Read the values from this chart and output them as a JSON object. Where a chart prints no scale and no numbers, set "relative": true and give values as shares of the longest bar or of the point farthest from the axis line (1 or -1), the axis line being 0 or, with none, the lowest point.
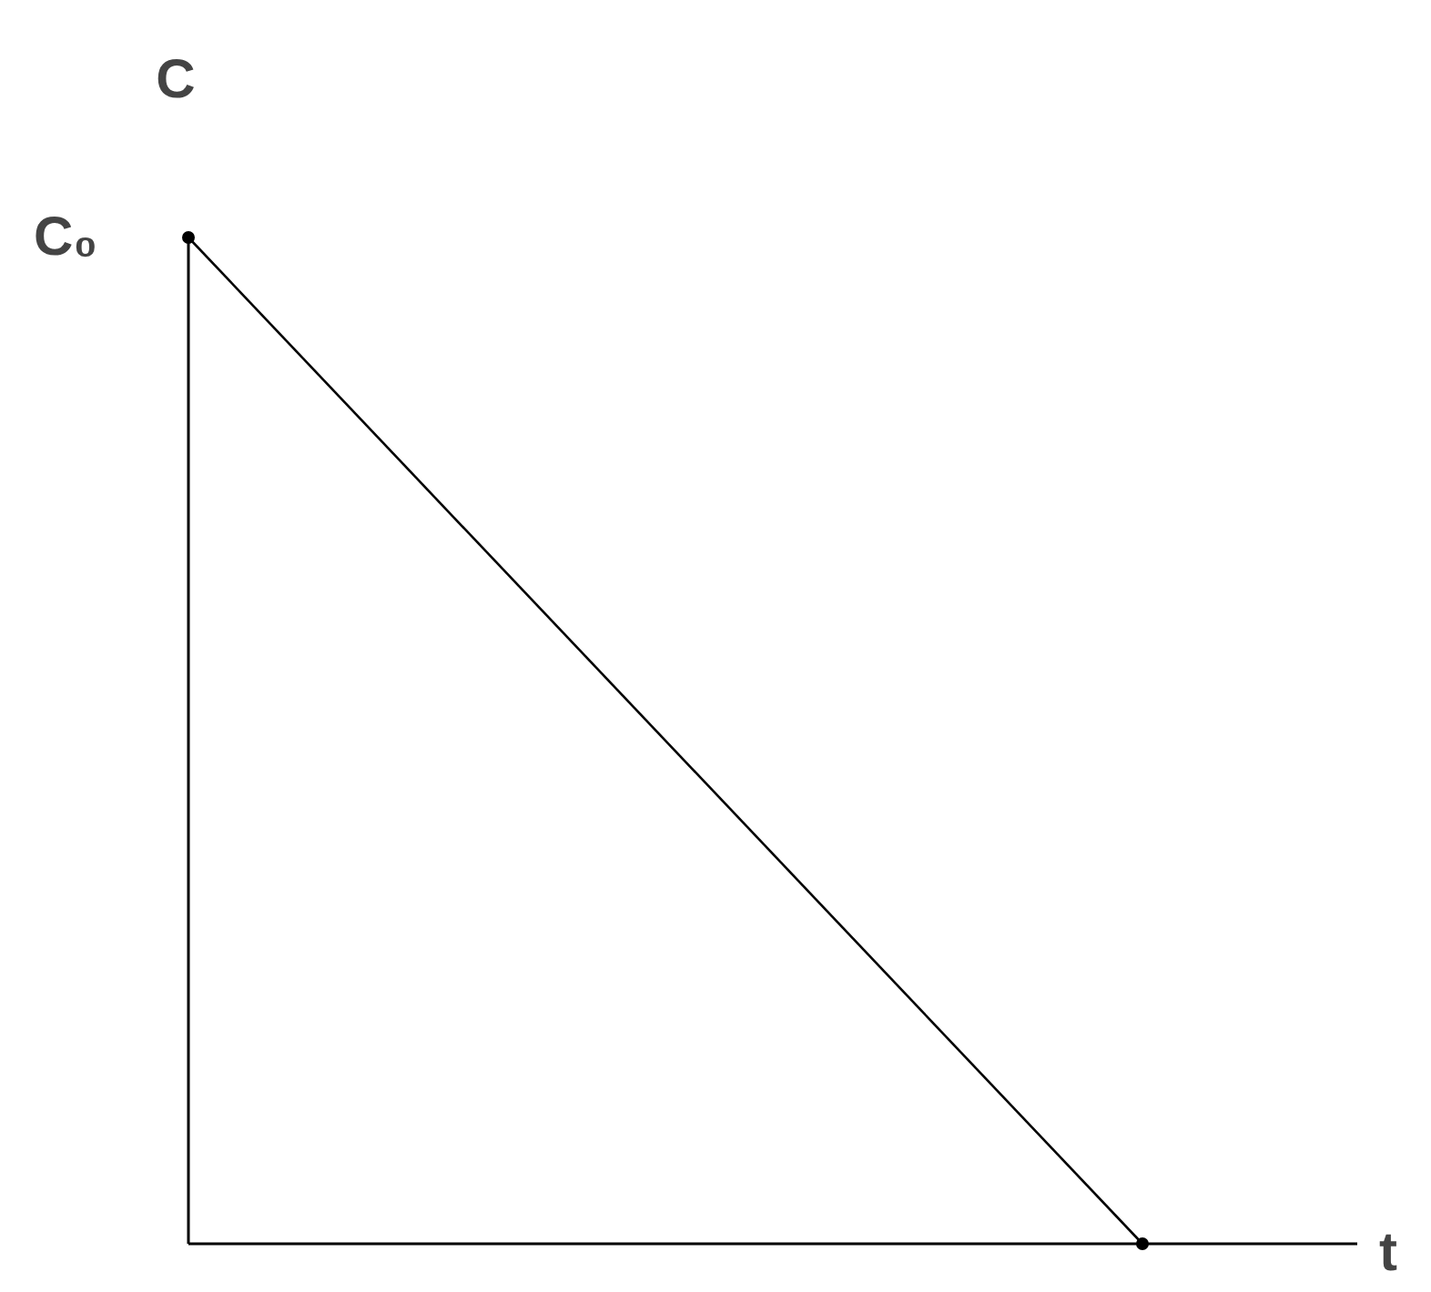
{
  "chart_data": {
    "type": "line",
    "relative": true,
    "categories": [
      null,
      null
    ],
    "xlabel": "t",
    "ylabel": "C",
    "series": [
      {
        "color": "#000000",
        "values": [
          1,
          0
        ]
      }
    ],
    "annotations": [
      "C₀"
    ],
    "marker": "circle",
    "line_style": "solid"
  }
}
